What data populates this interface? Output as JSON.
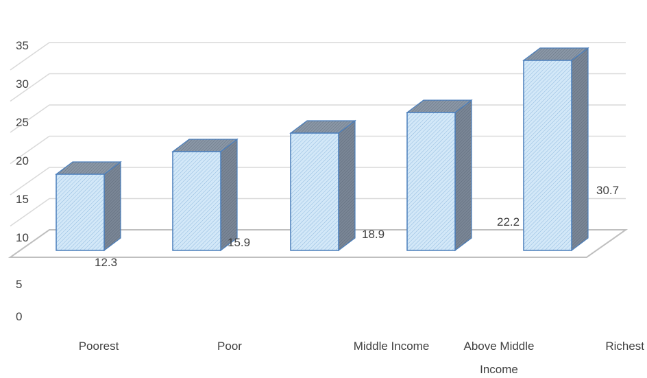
{
  "chart_data": {
    "type": "bar",
    "style": "3d-column",
    "categories": [
      "Poorest",
      "Poor",
      "Middle Income",
      "Above Middle Income",
      "Richest"
    ],
    "category_label_lines": [
      [
        "Poorest"
      ],
      [
        "Poor"
      ],
      [
        "Middle Income"
      ],
      [
        "Above Middle",
        "Income"
      ]
    ],
    "richest_label": "Richest",
    "values": [
      12.3,
      15.9,
      18.9,
      22.2,
      30.7
    ],
    "data_labels": [
      "12.3",
      "15.9",
      "18.9",
      "22.2",
      "30.7"
    ],
    "yticks": [
      "0",
      "5",
      "10",
      "15",
      "20",
      "25",
      "30",
      "35"
    ],
    "ylim": [
      0,
      35
    ],
    "grid": true,
    "legend": "none",
    "colors": {
      "bar_front": "#cfe6f7",
      "bar_side": "#6f7b89",
      "bar_top": "#7f8c9b",
      "bar_edge": "#4a7ebb",
      "grid": "#d9d9d9",
      "floor": "#bfbfbf",
      "text": "#404040"
    }
  }
}
